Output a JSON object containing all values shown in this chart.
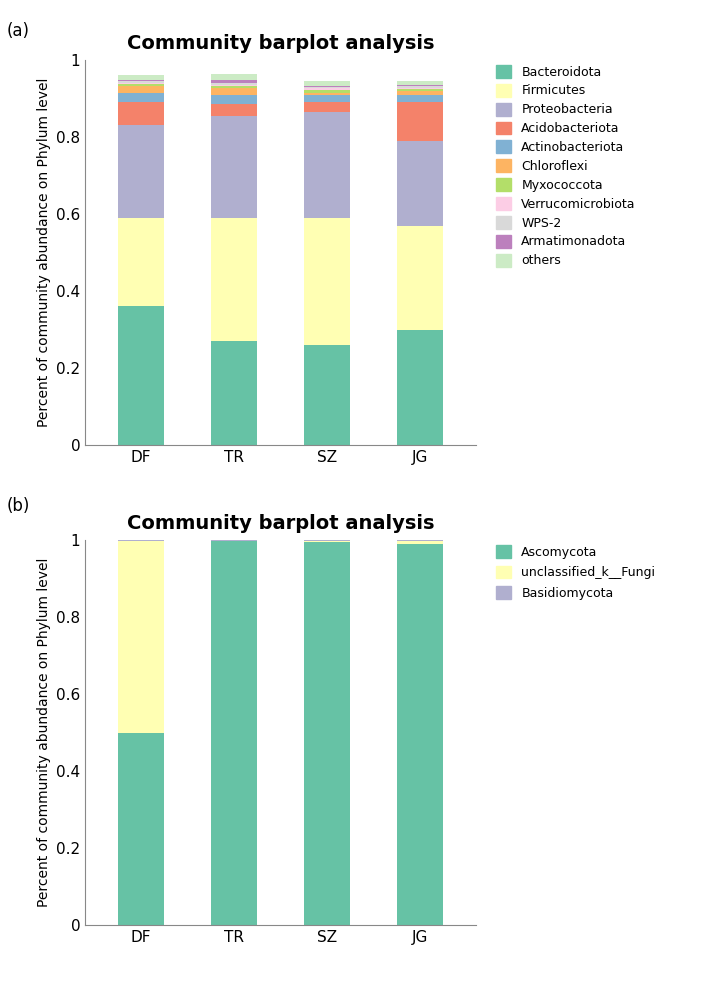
{
  "title": "Community barplot analysis",
  "ylabel": "Percent of community abundance on Phylum level",
  "categories": [
    "DF",
    "TR",
    "SZ",
    "JG"
  ],
  "phyla_labels": [
    "Bacteroidota",
    "Firmicutes",
    "Proteobacteria",
    "Acidobacteriota",
    "Actinobacteriota",
    "Chloroflexi",
    "Myxococcota",
    "Verrucomicrobiota",
    "WPS-2",
    "Armatimonadota",
    "others"
  ],
  "phyla_colors": [
    "#66C2A5",
    "#FFFFB3",
    "#B0AFCF",
    "#F4826A",
    "#80B1D3",
    "#FDB462",
    "#B3DE69",
    "#FCCDE5",
    "#D9D9D9",
    "#BC80BD",
    "#CCEBC5"
  ],
  "phyla_data": {
    "Bacteroidota": [
      0.36,
      0.27,
      0.26,
      0.3
    ],
    "Firmicutes": [
      0.23,
      0.32,
      0.33,
      0.27
    ],
    "Proteobacteria": [
      0.24,
      0.265,
      0.275,
      0.22
    ],
    "Acidobacteriota": [
      0.06,
      0.03,
      0.025,
      0.1
    ],
    "Actinobacteriota": [
      0.025,
      0.025,
      0.018,
      0.018
    ],
    "Chloroflexi": [
      0.018,
      0.018,
      0.005,
      0.012
    ],
    "Myxococcota": [
      0.004,
      0.004,
      0.009,
      0.004
    ],
    "Verrucomicrobiota": [
      0.004,
      0.004,
      0.004,
      0.004
    ],
    "WPS-2": [
      0.004,
      0.004,
      0.004,
      0.004
    ],
    "Armatimonadota": [
      0.003,
      0.009,
      0.003,
      0.003
    ],
    "others": [
      0.012,
      0.015,
      0.012,
      0.01
    ]
  },
  "fungi_labels": [
    "Ascomycota",
    "unclassified_k__Fungi",
    "Basidiomycota"
  ],
  "fungi_colors": [
    "#66C2A5",
    "#FFFFB3",
    "#B0AFCF"
  ],
  "fungi_data": {
    "Ascomycota": [
      0.5,
      0.998,
      0.995,
      0.99
    ],
    "unclassified_k__Fungi": [
      0.498,
      0.0,
      0.003,
      0.007
    ],
    "Basidiomycota": [
      0.002,
      0.002,
      0.002,
      0.003
    ]
  },
  "panel_label_fontsize": 12,
  "title_fontsize": 14,
  "ylabel_fontsize": 10,
  "tick_fontsize": 11,
  "legend_fontsize": 9
}
